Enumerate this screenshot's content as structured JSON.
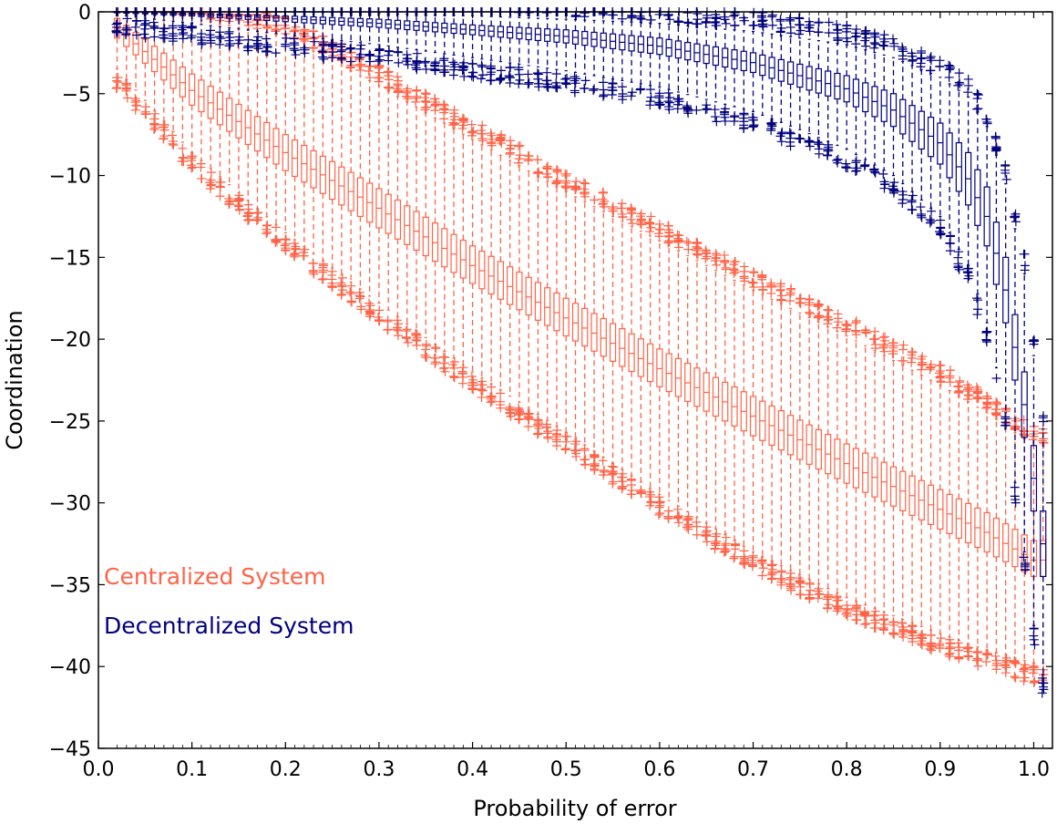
{
  "chart_data": {
    "type": "box",
    "xlabel": "Probability of error",
    "ylabel": "Coordination",
    "xlim": [
      0.0,
      1.02
    ],
    "ylim": [
      -45,
      0
    ],
    "xticks": [
      0.0,
      0.1,
      0.2,
      0.3,
      0.4,
      0.5,
      0.6,
      0.7,
      0.8,
      0.9,
      1.0
    ],
    "xtick_labels": [
      "0.0",
      "0.1",
      "0.2",
      "0.3",
      "0.4",
      "0.5",
      "0.6",
      "0.7",
      "0.8",
      "0.9",
      "1.0"
    ],
    "yticks": [
      0,
      -5,
      -10,
      -15,
      -20,
      -25,
      -30,
      -35,
      -40,
      -45
    ],
    "ytick_labels": [
      "0",
      "−5",
      "−10",
      "−15",
      "−20",
      "−25",
      "−30",
      "−35",
      "−40",
      "−45"
    ],
    "grid": false,
    "legend_placement": "lower-left",
    "series": [
      {
        "name": "Centralized System",
        "color": "#ff6347",
        "p": [
          0.02,
          0.1,
          0.2,
          0.3,
          0.4,
          0.5,
          0.6,
          0.7,
          0.8,
          0.9,
          0.95,
          1.0
        ],
        "median": [
          -1.0,
          -4.8,
          -8.6,
          -12.0,
          -15.5,
          -18.7,
          -21.8,
          -24.7,
          -27.6,
          -30.4,
          -31.8,
          -33.5
        ],
        "q1": [
          -1.6,
          -5.7,
          -9.7,
          -13.2,
          -16.6,
          -19.8,
          -22.9,
          -25.9,
          -28.8,
          -31.6,
          -33.0,
          -34.5
        ],
        "q3": [
          -0.4,
          -3.8,
          -7.5,
          -10.8,
          -14.3,
          -17.5,
          -20.6,
          -23.5,
          -26.4,
          -29.2,
          -30.6,
          -32.3
        ],
        "whisker_low": [
          -3.5,
          -8.6,
          -13.5,
          -17.8,
          -22.0,
          -25.7,
          -29.5,
          -33.0,
          -35.8,
          -38.0,
          -39.0,
          -39.8
        ],
        "whisker_high": [
          0.0,
          -0.4,
          -1.5,
          -4.5,
          -7.8,
          -11.0,
          -14.0,
          -17.0,
          -19.8,
          -22.8,
          -24.5,
          -26.5
        ]
      },
      {
        "name": "Decentralized System",
        "color": "#00007f",
        "p": [
          0.02,
          0.1,
          0.2,
          0.3,
          0.4,
          0.5,
          0.6,
          0.7,
          0.75,
          0.8,
          0.85,
          0.9,
          0.93,
          0.95,
          0.97,
          0.99,
          1.0,
          1.01
        ],
        "median": [
          0.0,
          -0.15,
          -0.4,
          -0.7,
          -1.1,
          -1.5,
          -2.1,
          -3.1,
          -3.9,
          -4.7,
          -6.0,
          -8.0,
          -10.2,
          -12.5,
          -17.0,
          -24.0,
          -28.5,
          -32.5
        ],
        "q1": [
          -0.05,
          -0.25,
          -0.6,
          -0.95,
          -1.4,
          -1.9,
          -2.6,
          -3.7,
          -4.6,
          -5.5,
          -7.0,
          -9.3,
          -11.8,
          -14.3,
          -19.0,
          -26.0,
          -30.5,
          -34.5
        ],
        "q3": [
          0.0,
          -0.08,
          -0.25,
          -0.45,
          -0.8,
          -1.1,
          -1.6,
          -2.5,
          -3.2,
          -3.9,
          -5.0,
          -6.8,
          -8.6,
          -10.7,
          -15.0,
          -22.0,
          -26.5,
          -30.5
        ],
        "whisker_low": [
          -0.2,
          -0.7,
          -1.4,
          -2.0,
          -2.8,
          -3.6,
          -4.6,
          -6.1,
          -7.2,
          -8.4,
          -10.0,
          -12.5,
          -15.5,
          -19.0,
          -24.5,
          -33.0,
          -37.5,
          -40.5
        ],
        "whisker_high": [
          0.0,
          0.0,
          0.0,
          -0.1,
          -0.25,
          -0.45,
          -0.7,
          -1.2,
          -1.6,
          -2.0,
          -2.8,
          -4.0,
          -5.2,
          -7.0,
          -10.5,
          -16.0,
          -21.0,
          -25.5
        ]
      }
    ]
  }
}
